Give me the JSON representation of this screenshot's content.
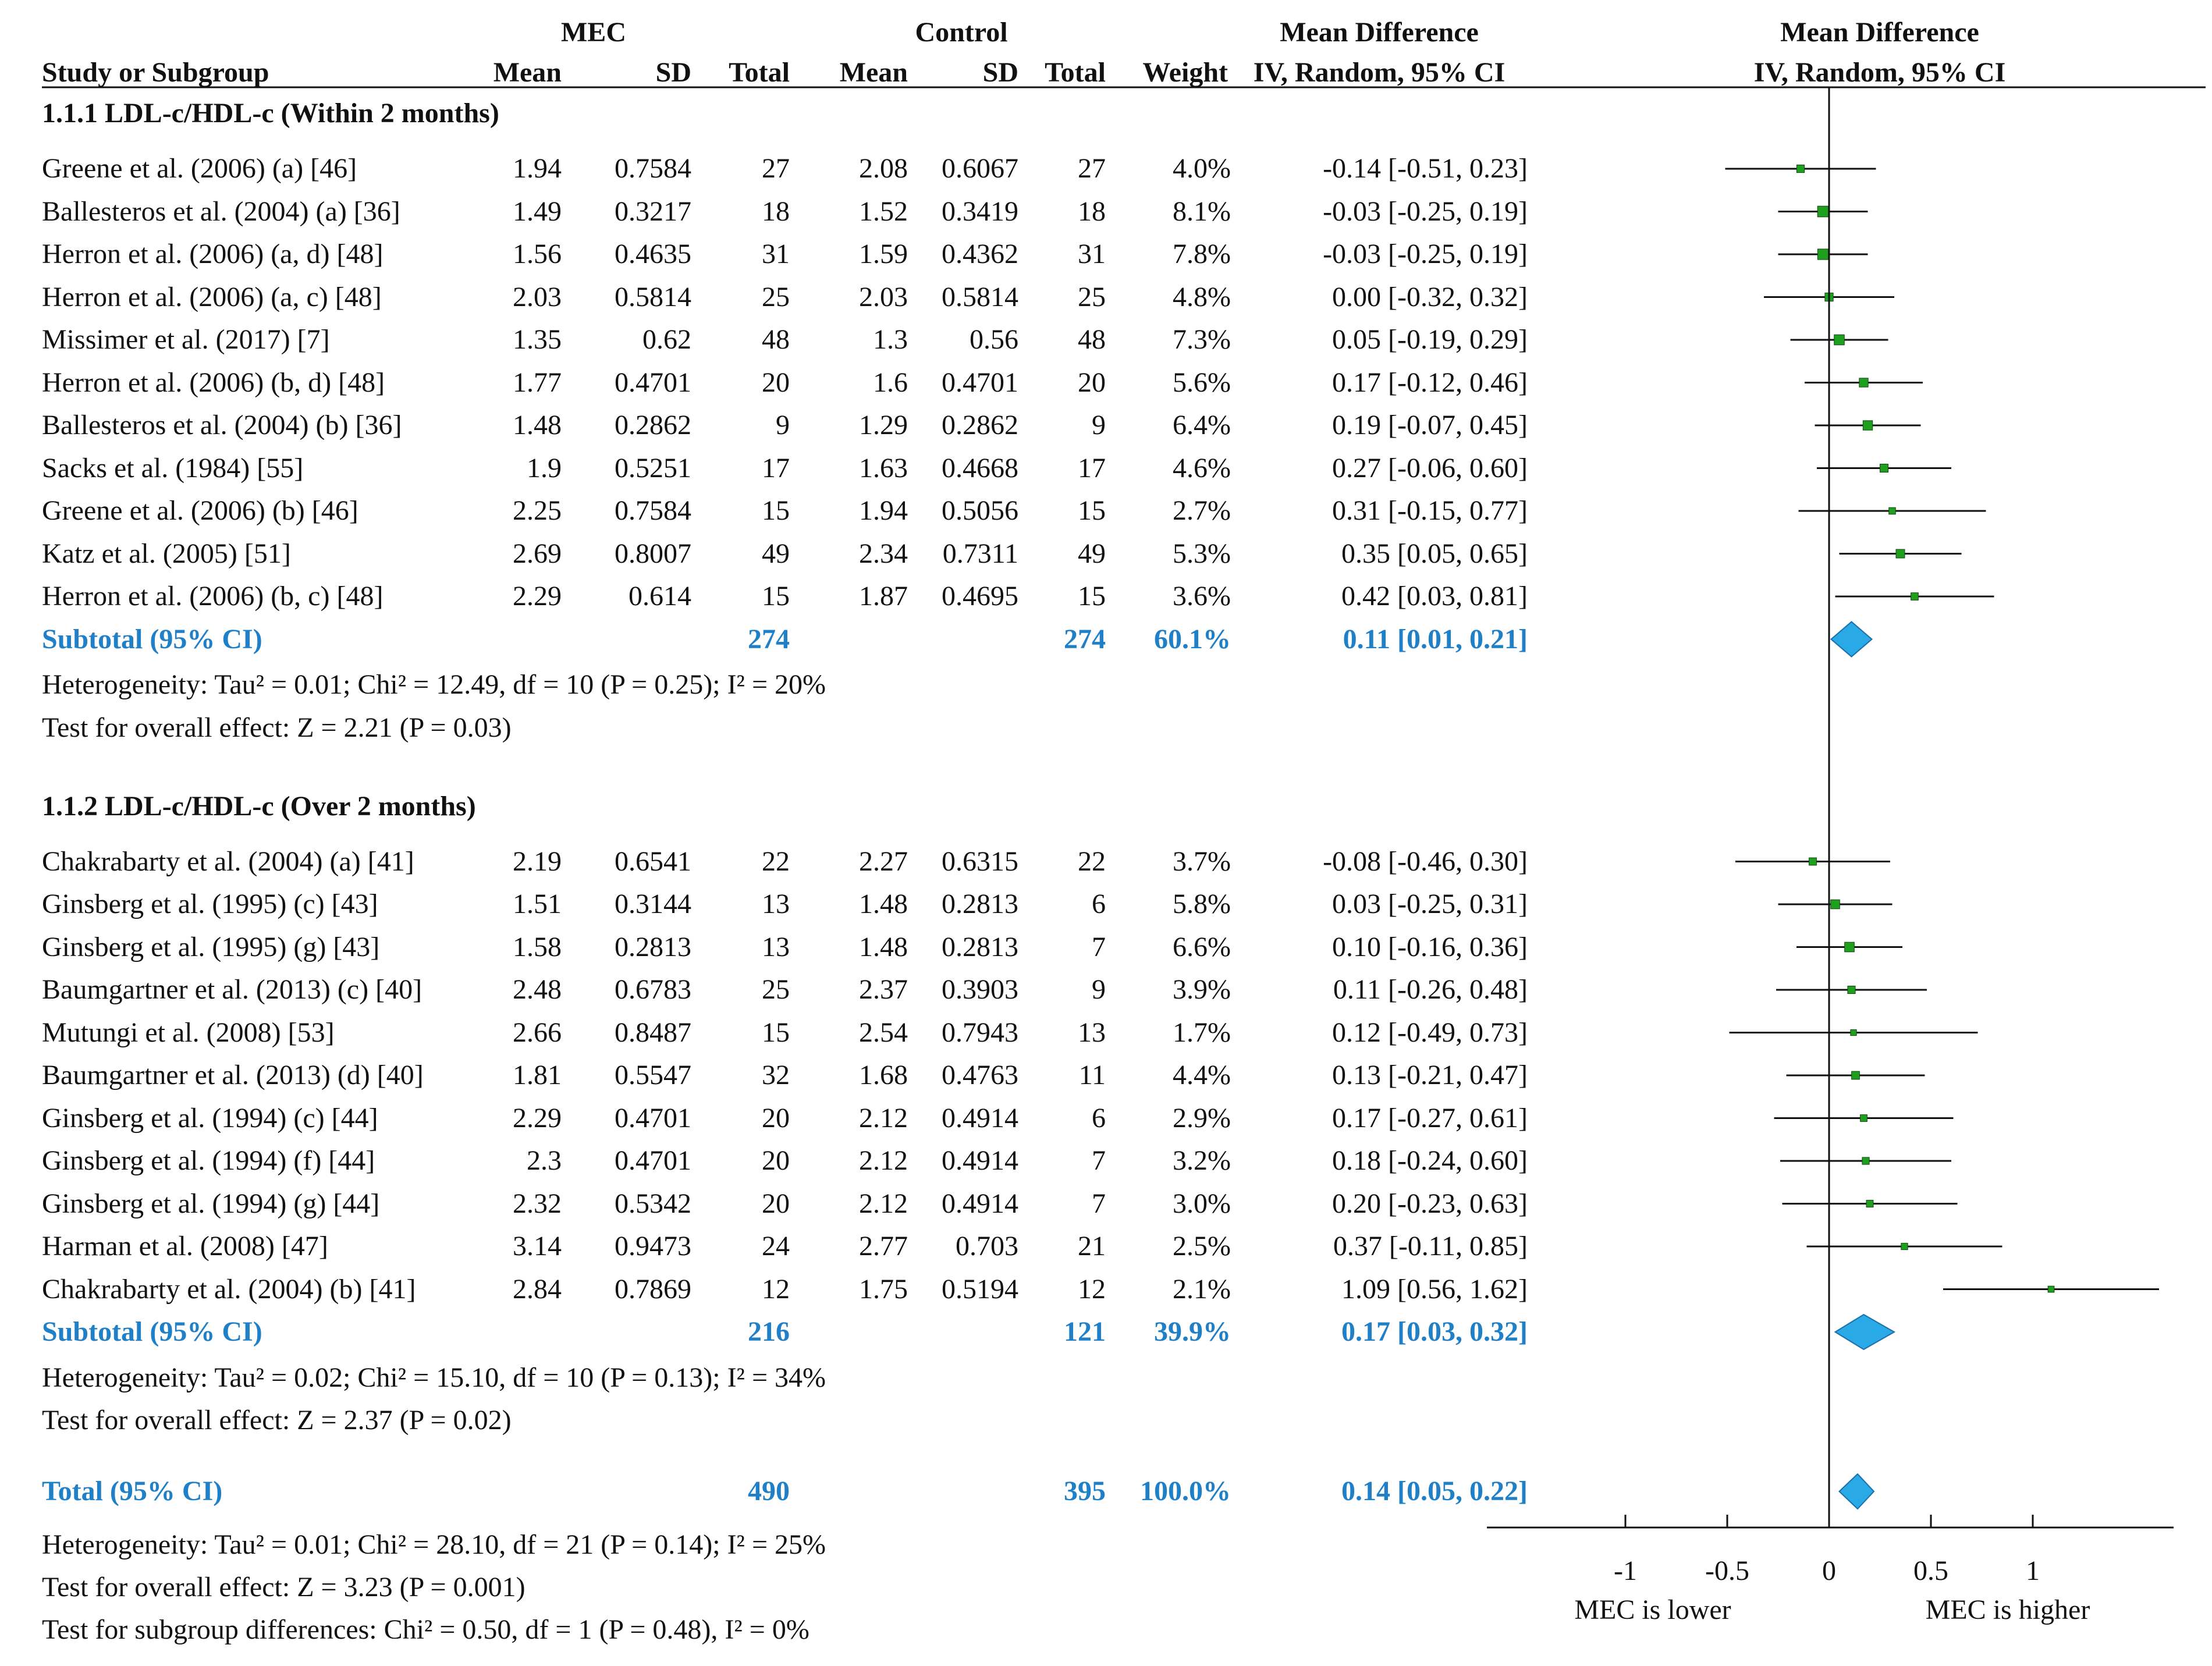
{
  "header": {
    "group_exp": "MEC",
    "group_ctrl": "Control",
    "md_top": "Mean Difference",
    "md_plot_top": "Mean Difference",
    "col_study": "Study or Subgroup",
    "col_mean": "Mean",
    "col_sd": "SD",
    "col_total": "Total",
    "col_weight": "Weight",
    "col_ci": "IV, Random, 95% CI"
  },
  "subgroups": [
    {
      "title": "1.1.1 LDL-c/HDL-c (Within 2 months)",
      "studies": [
        {
          "name": "Greene et al. (2006) (a) [46]",
          "mean_e": "1.94",
          "sd_e": "0.7584",
          "n_e": "27",
          "mean_c": "2.08",
          "sd_c": "0.6067",
          "n_c": "27",
          "weight": "4.0%",
          "ci_text": "-0.14 [-0.51, 0.23]",
          "md": -0.14,
          "lo": -0.51,
          "hi": 0.23,
          "w": 4.0
        },
        {
          "name": "Ballesteros et al. (2004) (a) [36]",
          "mean_e": "1.49",
          "sd_e": "0.3217",
          "n_e": "18",
          "mean_c": "1.52",
          "sd_c": "0.3419",
          "n_c": "18",
          "weight": "8.1%",
          "ci_text": "-0.03 [-0.25, 0.19]",
          "md": -0.03,
          "lo": -0.25,
          "hi": 0.19,
          "w": 8.1
        },
        {
          "name": "Herron et al. (2006) (a, d) [48]",
          "mean_e": "1.56",
          "sd_e": "0.4635",
          "n_e": "31",
          "mean_c": "1.59",
          "sd_c": "0.4362",
          "n_c": "31",
          "weight": "7.8%",
          "ci_text": "-0.03 [-0.25, 0.19]",
          "md": -0.03,
          "lo": -0.25,
          "hi": 0.19,
          "w": 7.8
        },
        {
          "name": "Herron et al. (2006) (a, c) [48]",
          "mean_e": "2.03",
          "sd_e": "0.5814",
          "n_e": "25",
          "mean_c": "2.03",
          "sd_c": "0.5814",
          "n_c": "25",
          "weight": "4.8%",
          "ci_text": "0.00 [-0.32, 0.32]",
          "md": 0.0,
          "lo": -0.32,
          "hi": 0.32,
          "w": 4.8
        },
        {
          "name": "Missimer et al. (2017) [7]",
          "mean_e": "1.35",
          "sd_e": "0.62",
          "n_e": "48",
          "mean_c": "1.3",
          "sd_c": "0.56",
          "n_c": "48",
          "weight": "7.3%",
          "ci_text": "0.05 [-0.19, 0.29]",
          "md": 0.05,
          "lo": -0.19,
          "hi": 0.29,
          "w": 7.3
        },
        {
          "name": "Herron et al. (2006) (b, d) [48]",
          "mean_e": "1.77",
          "sd_e": "0.4701",
          "n_e": "20",
          "mean_c": "1.6",
          "sd_c": "0.4701",
          "n_c": "20",
          "weight": "5.6%",
          "ci_text": "0.17 [-0.12, 0.46]",
          "md": 0.17,
          "lo": -0.12,
          "hi": 0.46,
          "w": 5.6
        },
        {
          "name": "Ballesteros et al. (2004) (b) [36]",
          "mean_e": "1.48",
          "sd_e": "0.2862",
          "n_e": "9",
          "mean_c": "1.29",
          "sd_c": "0.2862",
          "n_c": "9",
          "weight": "6.4%",
          "ci_text": "0.19 [-0.07, 0.45]",
          "md": 0.19,
          "lo": -0.07,
          "hi": 0.45,
          "w": 6.4
        },
        {
          "name": "Sacks et al. (1984) [55]",
          "mean_e": "1.9",
          "sd_e": "0.5251",
          "n_e": "17",
          "mean_c": "1.63",
          "sd_c": "0.4668",
          "n_c": "17",
          "weight": "4.6%",
          "ci_text": "0.27 [-0.06, 0.60]",
          "md": 0.27,
          "lo": -0.06,
          "hi": 0.6,
          "w": 4.6
        },
        {
          "name": "Greene et al. (2006) (b) [46]",
          "mean_e": "2.25",
          "sd_e": "0.7584",
          "n_e": "15",
          "mean_c": "1.94",
          "sd_c": "0.5056",
          "n_c": "15",
          "weight": "2.7%",
          "ci_text": "0.31 [-0.15, 0.77]",
          "md": 0.31,
          "lo": -0.15,
          "hi": 0.77,
          "w": 2.7
        },
        {
          "name": "Katz et al. (2005) [51]",
          "mean_e": "2.69",
          "sd_e": "0.8007",
          "n_e": "49",
          "mean_c": "2.34",
          "sd_c": "0.7311",
          "n_c": "49",
          "weight": "5.3%",
          "ci_text": "0.35 [0.05, 0.65]",
          "md": 0.35,
          "lo": 0.05,
          "hi": 0.65,
          "w": 5.3
        },
        {
          "name": "Herron et al. (2006) (b, c) [48]",
          "mean_e": "2.29",
          "sd_e": "0.614",
          "n_e": "15",
          "mean_c": "1.87",
          "sd_c": "0.4695",
          "n_c": "15",
          "weight": "3.6%",
          "ci_text": "0.42 [0.03, 0.81]",
          "md": 0.42,
          "lo": 0.03,
          "hi": 0.81,
          "w": 3.6
        }
      ],
      "subtotal": {
        "label": "Subtotal (95% CI)",
        "n_e": "274",
        "n_c": "274",
        "weight": "60.1%",
        "ci_text": "0.11 [0.01, 0.21]",
        "md": 0.11,
        "lo": 0.01,
        "hi": 0.21
      },
      "heterogeneity": "Heterogeneity: Tau² = 0.01; Chi² = 12.49, df = 10 (P = 0.25); I² = 20%",
      "overall": "Test for overall effect: Z = 2.21 (P = 0.03)"
    },
    {
      "title": "1.1.2 LDL-c/HDL-c (Over 2 months)",
      "studies": [
        {
          "name": "Chakrabarty et al. (2004) (a) [41]",
          "mean_e": "2.19",
          "sd_e": "0.6541",
          "n_e": "22",
          "mean_c": "2.27",
          "sd_c": "0.6315",
          "n_c": "22",
          "weight": "3.7%",
          "ci_text": "-0.08 [-0.46, 0.30]",
          "md": -0.08,
          "lo": -0.46,
          "hi": 0.3,
          "w": 3.7
        },
        {
          "name": "Ginsberg et al. (1995) (c) [43]",
          "mean_e": "1.51",
          "sd_e": "0.3144",
          "n_e": "13",
          "mean_c": "1.48",
          "sd_c": "0.2813",
          "n_c": "6",
          "weight": "5.8%",
          "ci_text": "0.03 [-0.25, 0.31]",
          "md": 0.03,
          "lo": -0.25,
          "hi": 0.31,
          "w": 5.8
        },
        {
          "name": "Ginsberg et al. (1995) (g) [43]",
          "mean_e": "1.58",
          "sd_e": "0.2813",
          "n_e": "13",
          "mean_c": "1.48",
          "sd_c": "0.2813",
          "n_c": "7",
          "weight": "6.6%",
          "ci_text": "0.10 [-0.16, 0.36]",
          "md": 0.1,
          "lo": -0.16,
          "hi": 0.36,
          "w": 6.6
        },
        {
          "name": "Baumgartner et al. (2013) (c) [40]",
          "mean_e": "2.48",
          "sd_e": "0.6783",
          "n_e": "25",
          "mean_c": "2.37",
          "sd_c": "0.3903",
          "n_c": "9",
          "weight": "3.9%",
          "ci_text": "0.11 [-0.26, 0.48]",
          "md": 0.11,
          "lo": -0.26,
          "hi": 0.48,
          "w": 3.9
        },
        {
          "name": "Mutungi et al. (2008) [53]",
          "mean_e": "2.66",
          "sd_e": "0.8487",
          "n_e": "15",
          "mean_c": "2.54",
          "sd_c": "0.7943",
          "n_c": "13",
          "weight": "1.7%",
          "ci_text": "0.12 [-0.49, 0.73]",
          "md": 0.12,
          "lo": -0.49,
          "hi": 0.73,
          "w": 1.7
        },
        {
          "name": "Baumgartner et al. (2013) (d) [40]",
          "mean_e": "1.81",
          "sd_e": "0.5547",
          "n_e": "32",
          "mean_c": "1.68",
          "sd_c": "0.4763",
          "n_c": "11",
          "weight": "4.4%",
          "ci_text": "0.13 [-0.21, 0.47]",
          "md": 0.13,
          "lo": -0.21,
          "hi": 0.47,
          "w": 4.4
        },
        {
          "name": "Ginsberg et al. (1994) (c) [44]",
          "mean_e": "2.29",
          "sd_e": "0.4701",
          "n_e": "20",
          "mean_c": "2.12",
          "sd_c": "0.4914",
          "n_c": "6",
          "weight": "2.9%",
          "ci_text": "0.17 [-0.27, 0.61]",
          "md": 0.17,
          "lo": -0.27,
          "hi": 0.61,
          "w": 2.9
        },
        {
          "name": "Ginsberg et al. (1994) (f) [44]",
          "mean_e": "2.3",
          "sd_e": "0.4701",
          "n_e": "20",
          "mean_c": "2.12",
          "sd_c": "0.4914",
          "n_c": "7",
          "weight": "3.2%",
          "ci_text": "0.18 [-0.24, 0.60]",
          "md": 0.18,
          "lo": -0.24,
          "hi": 0.6,
          "w": 3.2
        },
        {
          "name": "Ginsberg et al. (1994) (g) [44]",
          "mean_e": "2.32",
          "sd_e": "0.5342",
          "n_e": "20",
          "mean_c": "2.12",
          "sd_c": "0.4914",
          "n_c": "7",
          "weight": "3.0%",
          "ci_text": "0.20 [-0.23, 0.63]",
          "md": 0.2,
          "lo": -0.23,
          "hi": 0.63,
          "w": 3.0
        },
        {
          "name": "Harman et al. (2008) [47]",
          "mean_e": "3.14",
          "sd_e": "0.9473",
          "n_e": "24",
          "mean_c": "2.77",
          "sd_c": "0.703",
          "n_c": "21",
          "weight": "2.5%",
          "ci_text": "0.37 [-0.11, 0.85]",
          "md": 0.37,
          "lo": -0.11,
          "hi": 0.85,
          "w": 2.5
        },
        {
          "name": "Chakrabarty et al. (2004) (b) [41]",
          "mean_e": "2.84",
          "sd_e": "0.7869",
          "n_e": "12",
          "mean_c": "1.75",
          "sd_c": "0.5194",
          "n_c": "12",
          "weight": "2.1%",
          "ci_text": "1.09 [0.56, 1.62]",
          "md": 1.09,
          "lo": 0.56,
          "hi": 1.62,
          "w": 2.1
        }
      ],
      "subtotal": {
        "label": "Subtotal (95% CI)",
        "n_e": "216",
        "n_c": "121",
        "weight": "39.9%",
        "ci_text": "0.17 [0.03, 0.32]",
        "md": 0.17,
        "lo": 0.03,
        "hi": 0.32
      },
      "heterogeneity": "Heterogeneity: Tau² = 0.02; Chi² = 15.10, df = 10 (P = 0.13); I² = 34%",
      "overall": "Test for overall effect: Z = 2.37 (P = 0.02)"
    }
  ],
  "total": {
    "label": "Total (95% CI)",
    "n_e": "490",
    "n_c": "395",
    "weight": "100.0%",
    "ci_text": "0.14 [0.05, 0.22]",
    "md": 0.14,
    "lo": 0.05,
    "hi": 0.22
  },
  "footer": {
    "heterogeneity": "Heterogeneity: Tau² = 0.01; Chi² = 28.10, df = 21 (P = 0.14); I² = 25%",
    "overall": "Test for overall effect: Z = 3.23 (P = 0.001)",
    "subgroup_diff": "Test for subgroup differences: Chi² = 0.50, df = 1 (P = 0.48), I² = 0%"
  },
  "chart_data": {
    "type": "forest",
    "x_ticks": [
      -1,
      -0.5,
      0,
      0.5,
      1
    ],
    "x_tick_labels": [
      "-1",
      "-0.5",
      "0",
      "0.5",
      "1"
    ],
    "xlim": [
      -1,
      1.62
    ],
    "left_label": "MEC is lower",
    "right_label": "MEC is higher"
  },
  "colors": {
    "text": "#111111",
    "accent": "#1f7fc7",
    "diamond": "#29a9e6",
    "marker": "#1ea01e"
  }
}
